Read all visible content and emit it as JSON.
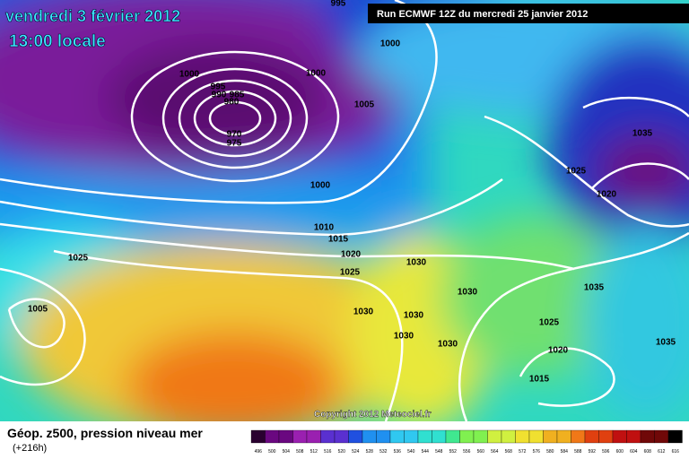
{
  "header": {
    "date": "vendredi 3 février 2012",
    "time": "13:00 locale",
    "run": "Run ECMWF 12Z du mercredi 25 janvier 2012"
  },
  "isobar_labels": [
    995,
    1000,
    1000,
    1000,
    995,
    990,
    985,
    980,
    970,
    975,
    1005,
    1000,
    1035,
    1025,
    1020,
    1010,
    1015,
    1020,
    1025,
    1030,
    1025,
    1005,
    1030,
    1030,
    1030,
    1030,
    1030,
    1035,
    1035,
    1025,
    1020,
    1015
  ],
  "copyright": "Copyright 2012 Meteociel.fr",
  "legend": {
    "title": "Géop. z500, pression niveau mer",
    "lead": "(+216h)",
    "scale": [
      496,
      500,
      504,
      508,
      512,
      516,
      520,
      524,
      528,
      532,
      536,
      540,
      544,
      548,
      552,
      556,
      560,
      564,
      568,
      572,
      576,
      580,
      584,
      588,
      592,
      596,
      600,
      604,
      608,
      612,
      616
    ]
  }
}
